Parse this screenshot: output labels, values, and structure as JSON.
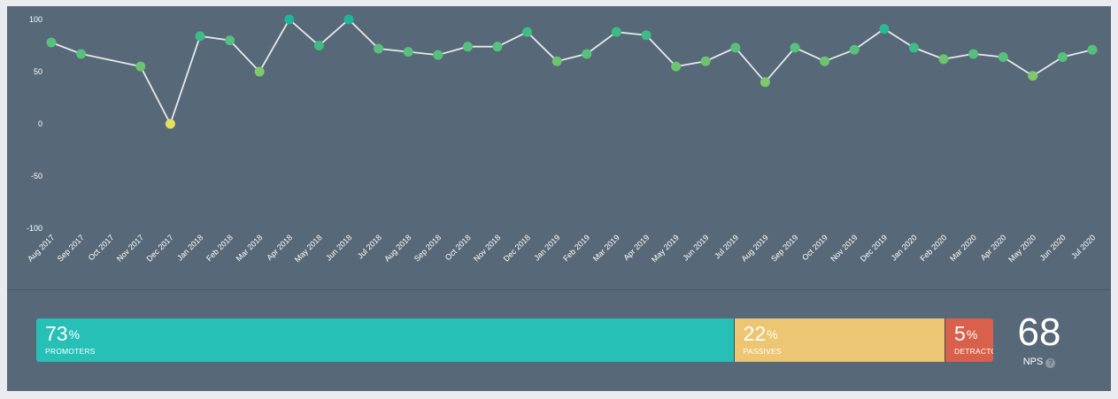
{
  "chart_data": {
    "type": "line",
    "categories": [
      "Aug 2017",
      "Sep 2017",
      "Oct 2017",
      "Nov 2017",
      "Dec 2017",
      "Jan 2018",
      "Feb 2018",
      "Mar 2018",
      "Apr 2018",
      "May 2018",
      "Jun 2018",
      "Jul 2018",
      "Aug 2018",
      "Sep 2018",
      "Oct 2018",
      "Nov 2018",
      "Dec 2018",
      "Jan 2019",
      "Feb 2019",
      "Mar 2019",
      "Apr 2019",
      "May 2019",
      "Jun 2019",
      "Jul 2019",
      "Aug 2019",
      "Sep 2019",
      "Oct 2019",
      "Nov 2019",
      "Dec 2019",
      "Jan 2020",
      "Feb 2020",
      "Mar 2020",
      "Apr 2020",
      "May 2020",
      "Jun 2020",
      "Jul 2020"
    ],
    "values": [
      78,
      67,
      null,
      55,
      0,
      84,
      80,
      50,
      100,
      75,
      100,
      72,
      69,
      66,
      74,
      74,
      88,
      60,
      67,
      88,
      85,
      55,
      60,
      73,
      40,
      73,
      60,
      71,
      91,
      73,
      62,
      67,
      64,
      46,
      64,
      71
    ],
    "point_colors": [
      "#58c07d",
      "#58c07d",
      null,
      "#6cc46f",
      "#e4e05a",
      "#3ebc85",
      "#58c07d",
      "#80c96a",
      "#1fb59b",
      "#3ebc85",
      "#1fb59b",
      "#58c07d",
      "#58c07d",
      "#58c07d",
      "#58c07d",
      "#58c07d",
      "#3ebc85",
      "#6cc46f",
      "#58c07d",
      "#3ebc85",
      "#3ebc85",
      "#6cc46f",
      "#6cc46f",
      "#58c07d",
      "#80c96a",
      "#58c07d",
      "#6cc46f",
      "#58c07d",
      "#2bb893",
      "#3ebc85",
      "#6cc46f",
      "#58c07d",
      "#58c07d",
      "#80c96a",
      "#58c07d",
      "#58c07d"
    ],
    "yticks": [
      "100",
      "50",
      "0",
      "-50",
      "-100"
    ],
    "ylim": [
      -100,
      100
    ],
    "line_color": "#e6e9ec",
    "title": "",
    "xlabel": "",
    "ylabel": ""
  },
  "breakdown": {
    "promoters": {
      "percent": "73",
      "symbol": "%",
      "label": "PROMOTERS",
      "value": 73,
      "color": "#26c0b7"
    },
    "passives": {
      "percent": "22",
      "symbol": "%",
      "label": "PASSIVES",
      "value": 22,
      "color": "#ecc672"
    },
    "detractors": {
      "percent": "5",
      "symbol": "%",
      "label": "DETRACTORS",
      "value": 5,
      "color": "#d9604a"
    }
  },
  "nps": {
    "score": "68",
    "label": "NPS",
    "help": "?"
  }
}
